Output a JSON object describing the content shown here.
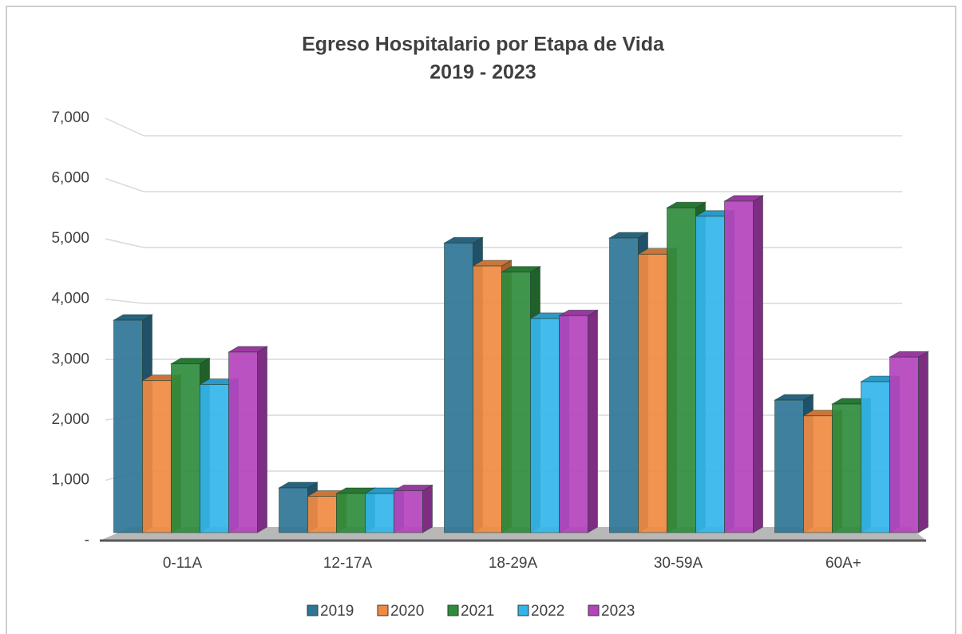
{
  "chart_data": {
    "type": "bar3d",
    "title": "Egreso Hospitalario por Etapa de Vida",
    "subtitle": "2019 - 2023",
    "categories": [
      "0-11A",
      "12-17A",
      "18-29A",
      "30-59A",
      "60A+"
    ],
    "series": [
      {
        "name": "2019",
        "color": "#2f7596",
        "values": [
          3800,
          800,
          5180,
          5270,
          2370
        ]
      },
      {
        "name": "2020",
        "color": "#f08a42",
        "values": [
          2720,
          650,
          4770,
          4980,
          2090
        ]
      },
      {
        "name": "2021",
        "color": "#2f8c3c",
        "values": [
          3020,
          700,
          4660,
          5810,
          2300
        ]
      },
      {
        "name": "2022",
        "color": "#33b5ea",
        "values": [
          2650,
          700,
          3830,
          5660,
          2700
        ]
      },
      {
        "name": "2023",
        "color": "#b443bc",
        "values": [
          3230,
          750,
          3880,
          5930,
          3140
        ]
      }
    ],
    "ylim": [
      0,
      7000
    ],
    "yticks": [
      {
        "value": 0,
        "label": "-"
      },
      {
        "value": 1000,
        "label": "1,000"
      },
      {
        "value": 2000,
        "label": "2,000"
      },
      {
        "value": 3000,
        "label": "3,000"
      },
      {
        "value": 4000,
        "label": "4,000"
      },
      {
        "value": 5000,
        "label": "5,000"
      },
      {
        "value": 6000,
        "label": "6,000"
      },
      {
        "value": 7000,
        "label": "7,000"
      }
    ],
    "grid": true,
    "legend": "bottom"
  }
}
